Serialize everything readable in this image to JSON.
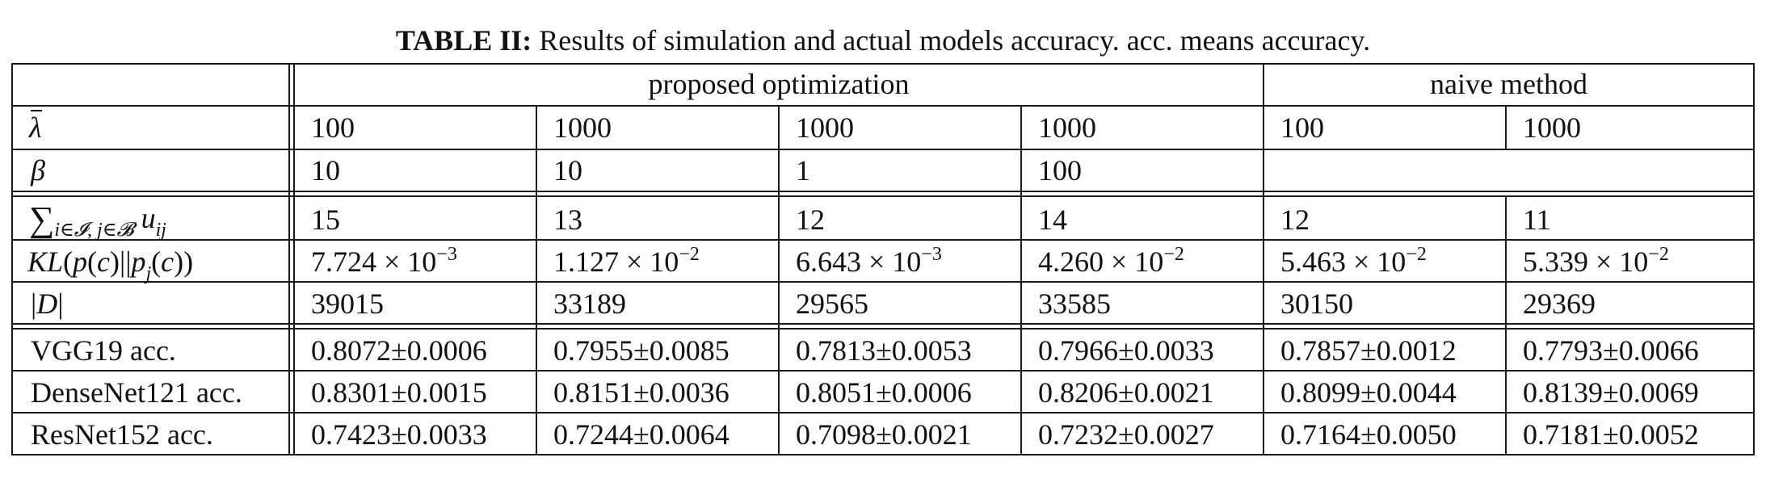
{
  "caption": {
    "label": "TABLE II:",
    "text": "Results of simulation and actual models accuracy. acc. means accuracy."
  },
  "table": {
    "groups": {
      "proposed": "proposed optimization",
      "naive": "naive method"
    },
    "params": {
      "lambda_values": [
        "100",
        "1000",
        "1000",
        "1000",
        "100",
        "1000"
      ],
      "beta_values": [
        "10",
        "10",
        "1",
        "100"
      ]
    },
    "stats": {
      "sum_u": [
        "15",
        "13",
        "12",
        "14",
        "12",
        "11"
      ],
      "kl_mantissa": [
        "7.724",
        "1.127",
        "6.643",
        "4.260",
        "5.463",
        "5.339"
      ],
      "kl_exponent": [
        "−3",
        "−2",
        "−3",
        "−2",
        "−2",
        "−2"
      ],
      "D": [
        "39015",
        "33189",
        "29565",
        "33585",
        "30150",
        "29369"
      ]
    },
    "accuracy": {
      "labels": [
        "VGG19 acc.",
        "DenseNet121 acc.",
        "ResNet152 acc."
      ],
      "rows": [
        [
          "0.8072±0.0006",
          "0.7955±0.0085",
          "0.7813±0.0053",
          "0.7966±0.0033",
          "0.7857±0.0012",
          "0.7793±0.0066"
        ],
        [
          "0.8301±0.0015",
          "0.8151±0.0036",
          "0.8051±0.0006",
          "0.8206±0.0021",
          "0.8099±0.0044",
          "0.8139±0.0069"
        ],
        [
          "0.7423±0.0033",
          "0.7244±0.0064",
          "0.7098±0.0021",
          "0.7232±0.0027",
          "0.7164±0.0050",
          "0.7181±0.0052"
        ]
      ]
    }
  }
}
